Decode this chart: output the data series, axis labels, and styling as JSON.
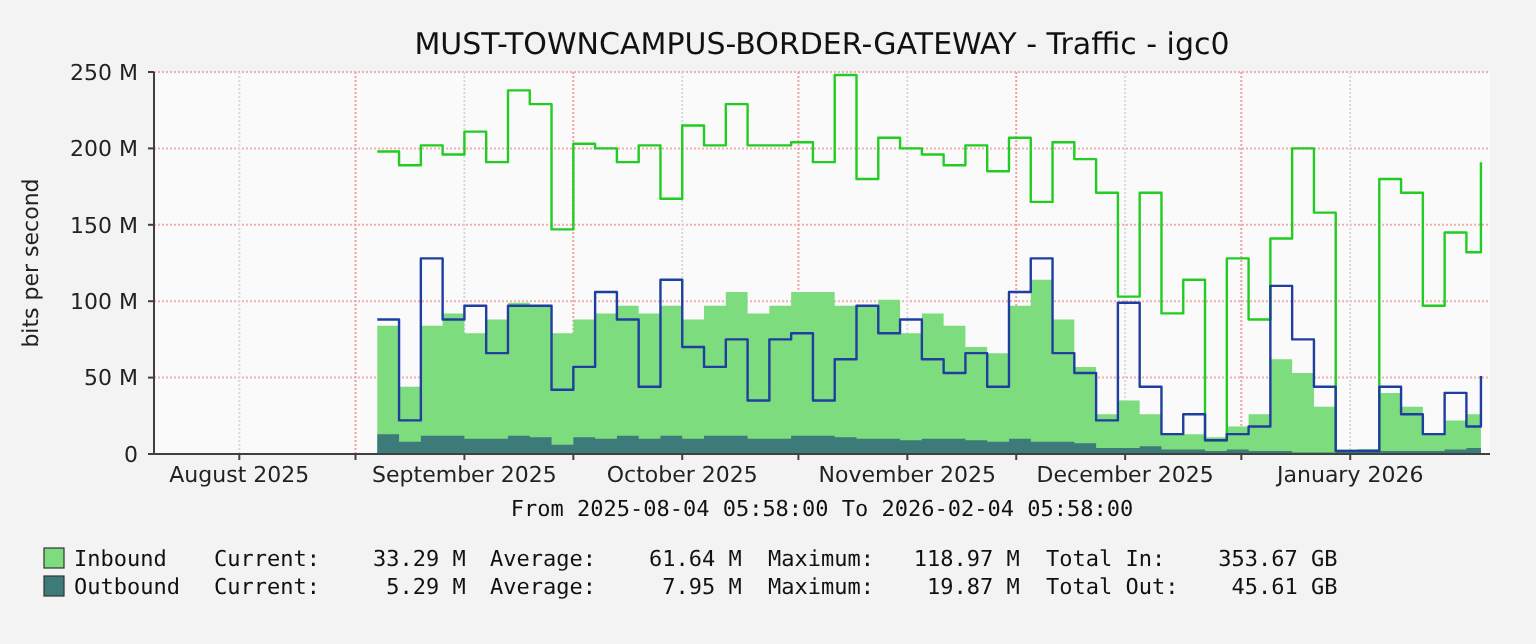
{
  "chart_data": {
    "type": "area",
    "title": "MUST-TOWNCAMPUS-BORDER-GATEWAY - Traffic - igc0",
    "subtitle": "From 2025-08-04 05:58:00 To 2026-02-04 05:58:00",
    "ylabel": "bits per second",
    "xlim": [
      "2025-08-04T05:58",
      "2026-02-04T05:58"
    ],
    "xticks": [
      {
        "value": "2025-08-16",
        "label": "August 2025"
      },
      {
        "value": "2025-09-01",
        "label": null
      },
      {
        "value": "2025-09-16",
        "label": "September 2025"
      },
      {
        "value": "2025-10-01",
        "label": null
      },
      {
        "value": "2025-10-16",
        "label": "October 2025"
      },
      {
        "value": "2025-11-01",
        "label": null
      },
      {
        "value": "2025-11-16",
        "label": "November 2025"
      },
      {
        "value": "2025-12-01",
        "label": null
      },
      {
        "value": "2025-12-16",
        "label": "December 2025"
      },
      {
        "value": "2026-01-01",
        "label": null
      },
      {
        "value": "2026-01-16",
        "label": "January 2026"
      }
    ],
    "ylim": [
      0,
      250
    ],
    "yticks": [
      0,
      {
        "value": 50,
        "label": "50 M"
      },
      {
        "value": 100,
        "label": "100 M"
      },
      {
        "value": 150,
        "label": "150 M"
      },
      {
        "value": 200,
        "label": "200 M"
      },
      {
        "value": 250,
        "label": "250 M"
      }
    ],
    "grid": true,
    "legend": "bottom",
    "x": [
      "2025-09-04",
      "2025-09-07",
      "2025-09-10",
      "2025-09-13",
      "2025-09-16",
      "2025-09-19",
      "2025-09-22",
      "2025-09-25",
      "2025-09-28",
      "2025-10-01",
      "2025-10-04",
      "2025-10-07",
      "2025-10-10",
      "2025-10-13",
      "2025-10-16",
      "2025-10-19",
      "2025-10-22",
      "2025-10-25",
      "2025-10-28",
      "2025-10-31",
      "2025-11-03",
      "2025-11-06",
      "2025-11-09",
      "2025-11-12",
      "2025-11-15",
      "2025-11-18",
      "2025-11-21",
      "2025-11-24",
      "2025-11-27",
      "2025-11-30",
      "2025-12-03",
      "2025-12-06",
      "2025-12-09",
      "2025-12-12",
      "2025-12-15",
      "2025-12-18",
      "2025-12-21",
      "2025-12-24",
      "2025-12-27",
      "2025-12-30",
      "2026-01-02",
      "2026-01-05",
      "2026-01-08",
      "2026-01-11",
      "2026-01-14",
      "2026-01-17",
      "2026-01-20",
      "2026-01-23",
      "2026-01-26",
      "2026-01-29",
      "2026-02-01",
      "2026-02-03"
    ],
    "series": [
      {
        "name": "Inbound",
        "color": "#7ddc7d",
        "values": [
          84,
          44,
          84,
          92,
          79,
          88,
          99,
          97,
          79,
          88,
          92,
          97,
          92,
          97,
          88,
          97,
          106,
          92,
          97,
          106,
          106,
          97,
          97,
          101,
          79,
          92,
          84,
          70,
          66,
          97,
          114,
          88,
          57,
          26,
          35,
          26,
          13,
          13,
          11,
          18,
          26,
          62,
          53,
          31,
          2,
          2,
          40,
          31,
          13,
          22,
          26,
          33
        ]
      },
      {
        "name": "Outbound",
        "color": "#3d7a7a",
        "values": [
          13,
          8,
          12,
          12,
          10,
          10,
          12,
          11,
          6,
          11,
          10,
          12,
          10,
          12,
          10,
          12,
          12,
          10,
          10,
          12,
          12,
          11,
          10,
          10,
          9,
          10,
          10,
          9,
          8,
          10,
          8,
          8,
          7,
          4,
          4,
          5,
          3,
          3,
          2,
          3,
          2,
          2,
          1,
          1,
          2,
          3,
          2,
          2,
          2,
          3,
          4,
          5
        ]
      },
      {
        "type": "step",
        "color": "#22cc22",
        "values": [
          198,
          189,
          202,
          196,
          211,
          191,
          238,
          229,
          147,
          203,
          200,
          191,
          202,
          167,
          215,
          202,
          229,
          202,
          202,
          204,
          191,
          248,
          180,
          207,
          200,
          196,
          189,
          202,
          185,
          207,
          165,
          204,
          193,
          171,
          103,
          171,
          92,
          114,
          9,
          128,
          88,
          141,
          200,
          158,
          2,
          2,
          180,
          171,
          97,
          145,
          132,
          191
        ]
      },
      {
        "type": "step",
        "color": "#1f3fa0",
        "values": [
          88,
          22,
          128,
          88,
          97,
          66,
          97,
          97,
          42,
          57,
          106,
          88,
          44,
          114,
          70,
          57,
          75,
          35,
          75,
          79,
          35,
          62,
          97,
          79,
          88,
          62,
          53,
          66,
          44,
          106,
          128,
          66,
          53,
          22,
          99,
          44,
          13,
          26,
          9,
          13,
          18,
          110,
          75,
          44,
          2,
          2,
          44,
          26,
          13,
          40,
          18,
          51
        ]
      }
    ],
    "annotations": [
      "Current:    33.29 M",
      "Average:    61.64 M",
      "Maximum:   118.97 M",
      "Total In:    353.67 GB",
      "Current:     5.29 M",
      "Average:     7.95 M",
      "Maximum:    19.87 M",
      "Total Out:    45.61 GB"
    ]
  }
}
